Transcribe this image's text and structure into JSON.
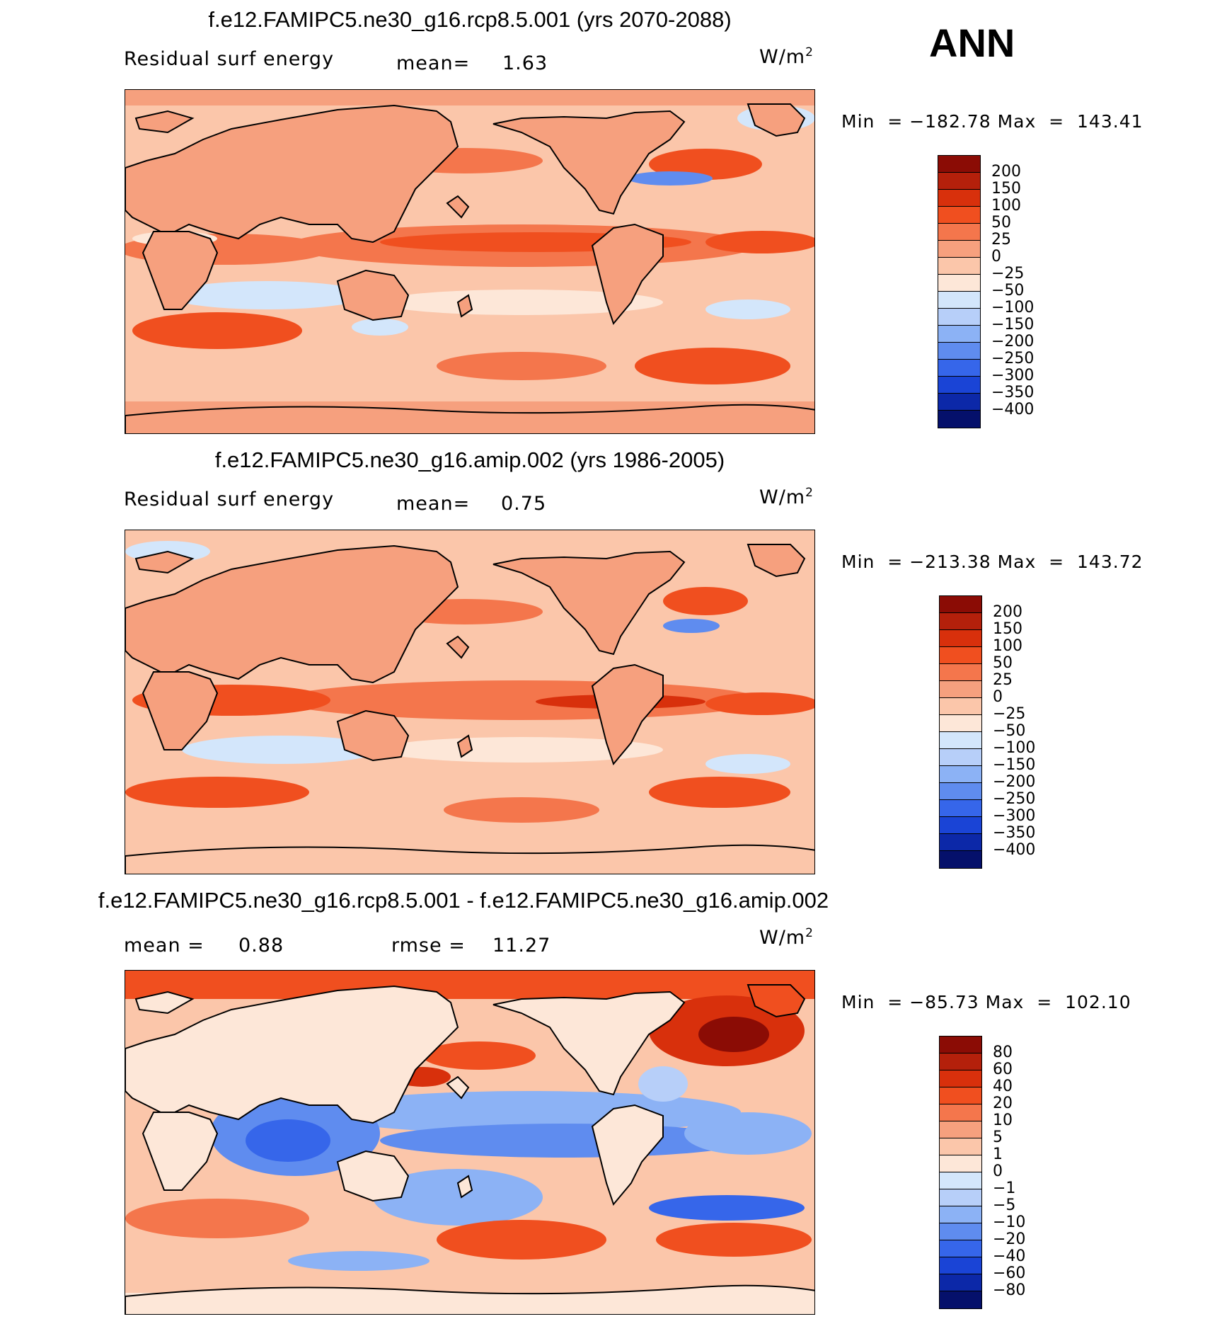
{
  "figure": {
    "season": "ANN",
    "units_base": "W/m",
    "units_exp": "2"
  },
  "panels": [
    {
      "title": "f.e12.FAMIPC5.ne30_g16.rcp8.5.001 (yrs 2070-2088)",
      "variable": "Residual surf energy",
      "mean_label": "mean=",
      "mean_value": "1.63",
      "min_label": "Min",
      "min_value": "−182.78",
      "max_label": "Max",
      "max_value": "143.41",
      "eq": "="
    },
    {
      "title": "f.e12.FAMIPC5.ne30_g16.amip.002 (yrs 1986-2005)",
      "variable": "Residual surf energy",
      "mean_label": "mean=",
      "mean_value": "0.75",
      "min_label": "Min",
      "min_value": "−213.38",
      "max_label": "Max",
      "max_value": "143.72",
      "eq": "="
    },
    {
      "title": "f.e12.FAMIPC5.ne30_g16.rcp8.5.001 - f.e12.FAMIPC5.ne30_g16.amip.002",
      "mean_label": "mean =",
      "mean_value": "0.88",
      "rmse_label": "rmse =",
      "rmse_value": "11.27",
      "min_label": "Min",
      "min_value": "−85.73",
      "max_label": "Max",
      "max_value": "102.10",
      "eq": "="
    }
  ],
  "colorbars": {
    "abs_levels": [
      "200",
      "150",
      "100",
      "50",
      "25",
      "0",
      "−25",
      "−50",
      "−100",
      "−150",
      "−200",
      "−250",
      "−300",
      "−350",
      "−400"
    ],
    "abs_colors": [
      "#8b0c05",
      "#b4200b",
      "#d8300c",
      "#f04f1f",
      "#f4764c",
      "#f6a07e",
      "#fbc6aa",
      "#fde7d8",
      "#d3e6fb",
      "#b7cff9",
      "#8cb2f5",
      "#5f8cef",
      "#3666ea",
      "#1a44d6",
      "#0c28a8",
      "#05106b"
    ],
    "diff_levels": [
      "80",
      "60",
      "40",
      "20",
      "10",
      "5",
      "1",
      "0",
      "−1",
      "−5",
      "−10",
      "−20",
      "−40",
      "−60",
      "−80"
    ],
    "diff_colors": [
      "#8b0c05",
      "#b4200b",
      "#d8300c",
      "#f04f1f",
      "#f4764c",
      "#f6a07e",
      "#fbc6aa",
      "#fde7d8",
      "#d3e6fb",
      "#b7cff9",
      "#8cb2f5",
      "#5f8cef",
      "#3666ea",
      "#1a44d6",
      "#0c28a8",
      "#05106b"
    ]
  },
  "colors": {
    "land_abs": "#f6a07e",
    "ocean_abs": "#fbc6aa",
    "land_diff": "#fde7d8",
    "ocean_diff": "#fbc6aa",
    "coast": "#000000"
  }
}
